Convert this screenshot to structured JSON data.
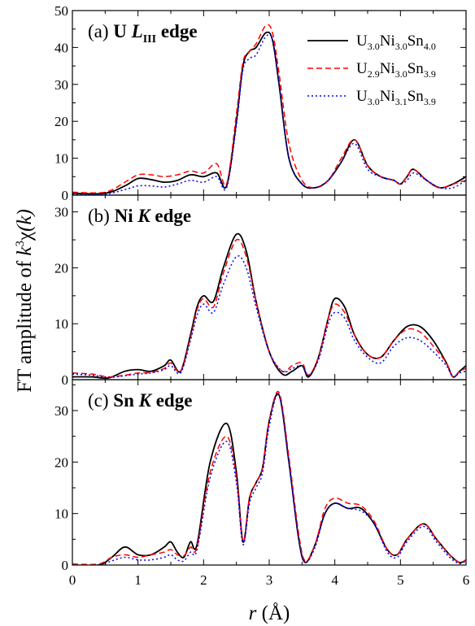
{
  "chart_data": {
    "type": "line",
    "xlabel_var": "r",
    "xlabel_unit": "(Å)",
    "ylabel_prefix": "FT amplitude of ",
    "ylabel_k": "k",
    "ylabel_exp": "3",
    "ylabel_chi": "χ",
    "ylabel_arg": "(k)",
    "xlim": [
      0,
      6
    ],
    "x_ticks": [
      "0",
      "1",
      "2",
      "3",
      "4",
      "5",
      "6"
    ],
    "legend_placement": "top-right of panel (a)",
    "series_styles": [
      {
        "color": "#000000",
        "dash": "solid"
      },
      {
        "color": "#ff0000",
        "dash": "dashed"
      },
      {
        "color": "#0000ff",
        "dash": "dotted"
      }
    ],
    "legend": [
      {
        "base": "U",
        "s1": "3.0",
        "b2": "Ni",
        "s2": "3.0",
        "b3": "Sn",
        "s3": "4.0"
      },
      {
        "base": "U",
        "s1": "2.9",
        "b2": "Ni",
        "s2": "3.0",
        "b3": "Sn",
        "s3": "3.9"
      },
      {
        "base": "U",
        "s1": "3.0",
        "b2": "Ni",
        "s2": "3.1",
        "b3": "Sn",
        "s3": "3.9"
      }
    ],
    "panels": [
      {
        "label_prefix": "(a) ",
        "label_bold": "U ",
        "label_italic": "L",
        "label_sub": "III",
        "label_suffix": " edge",
        "ylim": [
          0,
          50
        ],
        "y_ticks": [
          "0",
          "10",
          "20",
          "30",
          "40",
          "50"
        ],
        "series": [
          {
            "x": [
              0,
              0.5,
              0.8,
              1.0,
              1.2,
              1.4,
              1.6,
              1.8,
              2.0,
              2.2,
              2.35,
              2.5,
              2.6,
              2.7,
              2.8,
              2.95,
              3.05,
              3.15,
              3.3,
              3.5,
              3.7,
              3.9,
              4.1,
              4.3,
              4.5,
              4.7,
              4.9,
              5.0,
              5.1,
              5.2,
              5.4,
              5.6,
              5.8,
              6.0
            ],
            "y": [
              0.5,
              0.5,
              2.5,
              4.5,
              4.2,
              3.5,
              4.0,
              5.5,
              5.0,
              6.0,
              2.5,
              20,
              35,
              39,
              40,
              44,
              42,
              30,
              10,
              3,
              2,
              4,
              9,
              15,
              8,
              5,
              4,
              3,
              5,
              7,
              4,
              2,
              3,
              5
            ]
          },
          {
            "x": [
              0,
              0.5,
              0.8,
              1.0,
              1.2,
              1.4,
              1.6,
              1.8,
              2.0,
              2.2,
              2.35,
              2.5,
              2.6,
              2.7,
              2.8,
              2.95,
              3.05,
              3.15,
              3.3,
              3.5,
              3.7,
              3.9,
              4.1,
              4.3,
              4.5,
              4.7,
              4.9,
              5.0,
              5.1,
              5.2,
              5.4,
              5.6,
              5.8,
              6.0
            ],
            "y": [
              0.8,
              0.8,
              3.5,
              5.5,
              5.5,
              5.0,
              5.5,
              6.5,
              6.0,
              8.5,
              3.0,
              22,
              36,
              39,
              41,
              46,
              44,
              33,
              14,
              4,
              2,
              4,
              10,
              15,
              8,
              5,
              4,
              3,
              5,
              7,
              4,
              2,
              3,
              4
            ]
          },
          {
            "x": [
              0,
              0.5,
              0.8,
              1.0,
              1.2,
              1.4,
              1.6,
              1.8,
              2.0,
              2.2,
              2.35,
              2.5,
              2.6,
              2.7,
              2.8,
              2.95,
              3.05,
              3.15,
              3.3,
              3.5,
              3.7,
              3.9,
              4.1,
              4.3,
              4.5,
              4.7,
              4.9,
              5.0,
              5.1,
              5.2,
              5.4,
              5.6,
              5.8,
              6.0
            ],
            "y": [
              0.3,
              0.3,
              1.5,
              2.5,
              2.5,
              2.2,
              3.0,
              4.0,
              3.5,
              5.0,
              2.0,
              19,
              34,
              37,
              38,
              43,
              42,
              30,
              10,
              3,
              2,
              4,
              9,
              14,
              7,
              5,
              4,
              3,
              4,
              6,
              4,
              2,
              2,
              4
            ]
          }
        ]
      },
      {
        "label_prefix": "(b) ",
        "label_bold": "Ni ",
        "label_italic": "K",
        "label_sub": "",
        "label_suffix": " edge",
        "ylim": [
          0,
          33
        ],
        "y_ticks": [
          "0",
          "10",
          "20",
          "30"
        ],
        "series": [
          {
            "x": [
              0,
              0.3,
              0.55,
              0.8,
              1.0,
              1.2,
              1.4,
              1.5,
              1.65,
              1.8,
              1.9,
              2.0,
              2.15,
              2.3,
              2.5,
              2.65,
              2.8,
              3.0,
              3.2,
              3.35,
              3.5,
              3.6,
              3.75,
              3.9,
              4.0,
              4.15,
              4.3,
              4.5,
              4.7,
              4.9,
              5.1,
              5.3,
              5.5,
              5.7,
              5.8,
              5.9,
              6.0
            ],
            "y": [
              0.5,
              0.5,
              0.3,
              1.5,
              1.8,
              1.5,
              2.5,
              3.5,
              1.5,
              8,
              13,
              15,
              14,
              20,
              26,
              23,
              14,
              5,
              1,
              1.5,
              2.5,
              0.5,
              4,
              11,
              14.5,
              13,
              8,
              4.5,
              4,
              7,
              9.5,
              9.5,
              7,
              3,
              0.5,
              1.5,
              2.5
            ]
          },
          {
            "x": [
              0,
              0.3,
              0.55,
              0.8,
              1.0,
              1.2,
              1.4,
              1.5,
              1.65,
              1.8,
              1.9,
              2.0,
              2.15,
              2.3,
              2.5,
              2.65,
              2.8,
              3.0,
              3.2,
              3.35,
              3.5,
              3.6,
              3.75,
              3.9,
              4.0,
              4.15,
              4.3,
              4.5,
              4.7,
              4.9,
              5.1,
              5.3,
              5.5,
              5.7,
              5.8,
              5.9,
              6.0
            ],
            "y": [
              1.2,
              1.0,
              0.5,
              0.8,
              1.2,
              1.3,
              2.0,
              3.0,
              1.5,
              7.5,
              12.5,
              14.5,
              13,
              19,
              25,
              22,
              14,
              5,
              1.5,
              2.5,
              3.0,
              0.8,
              4,
              11,
              13.5,
              12,
              8,
              4.5,
              4,
              7,
              9,
              8.5,
              6,
              3,
              0.5,
              1.5,
              2.0
            ]
          },
          {
            "x": [
              0,
              0.3,
              0.55,
              0.8,
              1.0,
              1.2,
              1.4,
              1.5,
              1.65,
              1.8,
              1.9,
              2.0,
              2.15,
              2.3,
              2.5,
              2.65,
              2.8,
              3.0,
              3.2,
              3.35,
              3.5,
              3.6,
              3.75,
              3.9,
              4.0,
              4.15,
              4.3,
              4.5,
              4.7,
              4.9,
              5.1,
              5.3,
              5.5,
              5.7,
              5.8,
              5.9,
              6.0
            ],
            "y": [
              1.0,
              0.8,
              0.4,
              0.7,
              1.0,
              1.2,
              1.8,
              2.5,
              1.2,
              7,
              11.5,
              13.5,
              12,
              17,
              22,
              20,
              13,
              5,
              1.5,
              2.0,
              2.5,
              0.8,
              3.5,
              10,
              12,
              11,
              7,
              4,
              3,
              6,
              7.5,
              7,
              5,
              2.5,
              0.5,
              1.2,
              1.5
            ]
          }
        ]
      },
      {
        "label_prefix": "(c) ",
        "label_bold": "Sn ",
        "label_italic": "K",
        "label_sub": "",
        "label_suffix": " edge",
        "ylim": [
          0,
          36
        ],
        "y_ticks": [
          "0",
          "10",
          "20",
          "30"
        ],
        "series": [
          {
            "x": [
              0,
              0.4,
              0.6,
              0.8,
              1.0,
              1.2,
              1.4,
              1.5,
              1.6,
              1.7,
              1.8,
              1.9,
              2.1,
              2.35,
              2.5,
              2.6,
              2.7,
              2.8,
              2.9,
              3.0,
              3.15,
              3.3,
              3.45,
              3.55,
              3.7,
              3.85,
              4.0,
              4.2,
              4.4,
              4.6,
              4.8,
              4.95,
              5.1,
              5.35,
              5.55,
              5.75,
              5.9,
              6.0
            ],
            "y": [
              0,
              0,
              1.5,
              3.5,
              2.0,
              2.0,
              3.5,
              4.5,
              2.5,
              1.5,
              4.5,
              4.0,
              20,
              27.5,
              18,
              4.5,
              13,
              16,
              19,
              28,
              33,
              20,
              5,
              0.5,
              4,
              10,
              12,
              11,
              11,
              8,
              3,
              2,
              5,
              8,
              5,
              2,
              0.5,
              1.0
            ]
          },
          {
            "x": [
              0,
              0.4,
              0.6,
              0.8,
              1.0,
              1.2,
              1.4,
              1.5,
              1.6,
              1.7,
              1.8,
              1.9,
              2.1,
              2.35,
              2.5,
              2.6,
              2.7,
              2.8,
              2.9,
              3.0,
              3.15,
              3.3,
              3.45,
              3.55,
              3.7,
              3.85,
              4.0,
              4.2,
              4.4,
              4.6,
              4.8,
              4.95,
              5.1,
              5.35,
              5.55,
              5.75,
              5.9,
              6.0
            ],
            "y": [
              0.2,
              0.2,
              1.5,
              2.0,
              1.5,
              2.0,
              2.5,
              3.0,
              2.0,
              1.8,
              3.5,
              3.5,
              18,
              25,
              17,
              4.5,
              13,
              16,
              19,
              28,
              33.5,
              21,
              6,
              0.8,
              4,
              11,
              13,
              12,
              11.5,
              8.5,
              3,
              2,
              5,
              8,
              5,
              2,
              0.5,
              1.0
            ]
          },
          {
            "x": [
              0,
              0.4,
              0.6,
              0.8,
              1.0,
              1.2,
              1.4,
              1.5,
              1.6,
              1.7,
              1.8,
              1.9,
              2.1,
              2.35,
              2.5,
              2.6,
              2.7,
              2.8,
              2.9,
              3.0,
              3.15,
              3.3,
              3.45,
              3.55,
              3.7,
              3.85,
              4.0,
              4.2,
              4.4,
              4.6,
              4.8,
              4.95,
              5.1,
              5.35,
              5.55,
              5.75,
              5.9,
              6.0
            ],
            "y": [
              0,
              0,
              0.8,
              1.5,
              1.0,
              1.0,
              1.5,
              2.0,
              1.0,
              0.8,
              2.5,
              3.0,
              17,
              24,
              16,
              4.0,
              12,
              15,
              18,
              27,
              33,
              20,
              5,
              0.5,
              3.5,
              10,
              12,
              11,
              10.5,
              8,
              2.5,
              1.5,
              4.5,
              7.5,
              4.5,
              1.5,
              0.3,
              0.8
            ]
          }
        ]
      }
    ]
  }
}
